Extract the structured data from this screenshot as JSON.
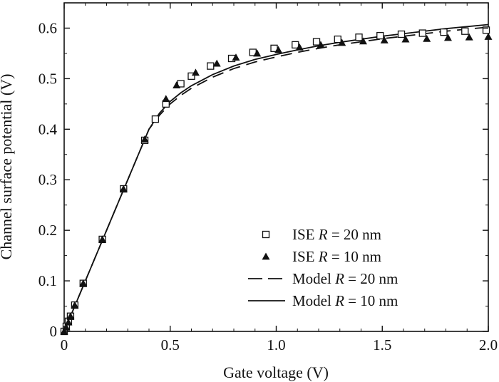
{
  "chart_data": {
    "type": "line",
    "xlabel": "Gate voltage (V)",
    "ylabel": "Channel surface potential (V)",
    "xlim": [
      0,
      2.0
    ],
    "ylim": [
      0,
      0.65
    ],
    "x_ticks": [
      0,
      0.5,
      1.0,
      1.5,
      2.0
    ],
    "x_tick_labels": [
      "0",
      "0.5",
      "1.0",
      "1.5",
      "2.0"
    ],
    "y_ticks": [
      0,
      0.1,
      0.2,
      0.3,
      0.4,
      0.5,
      0.6
    ],
    "y_tick_labels": [
      "0",
      "0.1",
      "0.2",
      "0.3",
      "0.4",
      "0.5",
      "0.6"
    ],
    "grid": false,
    "legend_position": "bottom-right",
    "series": [
      {
        "name_prefix": "ISE",
        "name_symbol": "R",
        "name_suffix": " = 20 nm",
        "kind": "scatter",
        "marker": "open-square",
        "points": [
          [
            0.0,
            0.0
          ],
          [
            0.01,
            0.01
          ],
          [
            0.02,
            0.02
          ],
          [
            0.03,
            0.03
          ],
          [
            0.05,
            0.052
          ],
          [
            0.09,
            0.095
          ],
          [
            0.18,
            0.182
          ],
          [
            0.28,
            0.282
          ],
          [
            0.38,
            0.378
          ],
          [
            0.43,
            0.42
          ],
          [
            0.48,
            0.45
          ],
          [
            0.55,
            0.49
          ],
          [
            0.6,
            0.505
          ],
          [
            0.69,
            0.525
          ],
          [
            0.79,
            0.54
          ],
          [
            0.89,
            0.552
          ],
          [
            0.99,
            0.56
          ],
          [
            1.09,
            0.567
          ],
          [
            1.19,
            0.573
          ],
          [
            1.29,
            0.578
          ],
          [
            1.39,
            0.582
          ],
          [
            1.49,
            0.585
          ],
          [
            1.59,
            0.588
          ],
          [
            1.69,
            0.59
          ],
          [
            1.79,
            0.592
          ],
          [
            1.89,
            0.594
          ],
          [
            1.99,
            0.596
          ]
        ]
      },
      {
        "name_prefix": "ISE",
        "name_symbol": "R",
        "name_suffix": " = 10 nm",
        "kind": "scatter",
        "marker": "filled-triangle",
        "points": [
          [
            0.0,
            0.0
          ],
          [
            0.01,
            0.008
          ],
          [
            0.02,
            0.018
          ],
          [
            0.03,
            0.03
          ],
          [
            0.05,
            0.052
          ],
          [
            0.09,
            0.095
          ],
          [
            0.18,
            0.182
          ],
          [
            0.28,
            0.282
          ],
          [
            0.38,
            0.38
          ],
          [
            0.48,
            0.46
          ],
          [
            0.53,
            0.487
          ],
          [
            0.62,
            0.512
          ],
          [
            0.72,
            0.53
          ],
          [
            0.81,
            0.542
          ],
          [
            0.91,
            0.55
          ],
          [
            1.01,
            0.557
          ],
          [
            1.11,
            0.562
          ],
          [
            1.21,
            0.567
          ],
          [
            1.31,
            0.571
          ],
          [
            1.41,
            0.574
          ],
          [
            1.51,
            0.576
          ],
          [
            1.61,
            0.578
          ],
          [
            1.71,
            0.579
          ],
          [
            1.81,
            0.581
          ],
          [
            1.91,
            0.582
          ],
          [
            2.0,
            0.583
          ]
        ]
      },
      {
        "name_prefix": "Model",
        "name_symbol": "R",
        "name_suffix": " = 20 nm",
        "kind": "line",
        "dash": "16,9",
        "points": [
          [
            0.0,
            0.0
          ],
          [
            0.1,
            0.1
          ],
          [
            0.2,
            0.2
          ],
          [
            0.3,
            0.3
          ],
          [
            0.35,
            0.35
          ],
          [
            0.4,
            0.4
          ],
          [
            0.45,
            0.428
          ],
          [
            0.5,
            0.45
          ],
          [
            0.55,
            0.467
          ],
          [
            0.6,
            0.481
          ],
          [
            0.7,
            0.503
          ],
          [
            0.8,
            0.52
          ],
          [
            0.9,
            0.533
          ],
          [
            1.0,
            0.543
          ],
          [
            1.1,
            0.552
          ],
          [
            1.2,
            0.56
          ],
          [
            1.3,
            0.567
          ],
          [
            1.4,
            0.573
          ],
          [
            1.5,
            0.579
          ],
          [
            1.6,
            0.584
          ],
          [
            1.7,
            0.589
          ],
          [
            1.8,
            0.594
          ],
          [
            1.9,
            0.598
          ],
          [
            2.0,
            0.602
          ]
        ]
      },
      {
        "name_prefix": "Model",
        "name_symbol": "R",
        "name_suffix": " = 10 nm",
        "kind": "line",
        "dash": "",
        "points": [
          [
            0.0,
            0.0
          ],
          [
            0.1,
            0.1
          ],
          [
            0.2,
            0.2
          ],
          [
            0.3,
            0.3
          ],
          [
            0.35,
            0.35
          ],
          [
            0.4,
            0.4
          ],
          [
            0.45,
            0.432
          ],
          [
            0.5,
            0.455
          ],
          [
            0.55,
            0.472
          ],
          [
            0.6,
            0.486
          ],
          [
            0.7,
            0.508
          ],
          [
            0.8,
            0.525
          ],
          [
            0.9,
            0.538
          ],
          [
            1.0,
            0.548
          ],
          [
            1.1,
            0.557
          ],
          [
            1.2,
            0.565
          ],
          [
            1.3,
            0.572
          ],
          [
            1.4,
            0.578
          ],
          [
            1.5,
            0.584
          ],
          [
            1.6,
            0.589
          ],
          [
            1.7,
            0.594
          ],
          [
            1.8,
            0.599
          ],
          [
            1.9,
            0.603
          ],
          [
            2.0,
            0.607
          ]
        ]
      }
    ]
  }
}
